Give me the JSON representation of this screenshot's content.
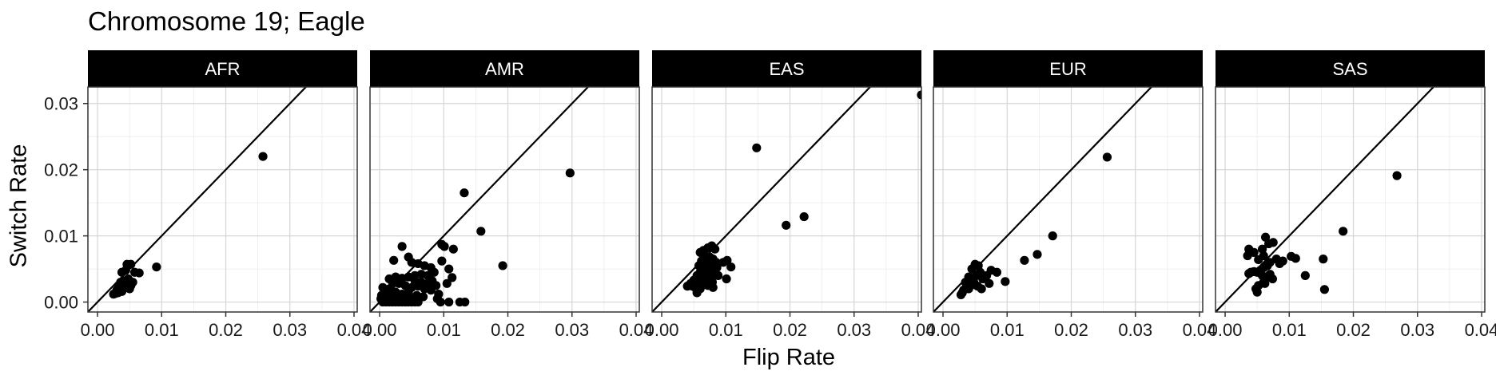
{
  "title": "Chromosome 19; Eagle",
  "chart_data": {
    "type": "scatter",
    "title": "Chromosome 19; Eagle",
    "xlabel": "Flip Rate",
    "ylabel": "Switch Rate",
    "xlim": [
      -0.0015,
      0.0405
    ],
    "ylim": [
      -0.0015,
      0.0325
    ],
    "xticks": [
      "0.00",
      "0.01",
      "0.02",
      "0.03",
      "0.04"
    ],
    "yticks": [
      "0.00",
      "0.01",
      "0.02",
      "0.03"
    ],
    "xtick_values": [
      0,
      0.01,
      0.02,
      0.03,
      0.04
    ],
    "ytick_values": [
      0,
      0.01,
      0.02,
      0.03
    ],
    "reference_line": "y = x",
    "grid": true,
    "legend": "none",
    "panels": [
      {
        "name": "AFR",
        "points": [
          [
            0.0258,
            0.022
          ],
          [
            0.0092,
            0.0053
          ],
          [
            0.0065,
            0.0044
          ],
          [
            0.0058,
            0.0045
          ],
          [
            0.0052,
            0.0057
          ],
          [
            0.0046,
            0.0057
          ],
          [
            0.0044,
            0.0048
          ],
          [
            0.0038,
            0.0045
          ],
          [
            0.0048,
            0.0035
          ],
          [
            0.0042,
            0.0032
          ],
          [
            0.0036,
            0.003
          ],
          [
            0.0052,
            0.0025
          ],
          [
            0.005,
            0.002
          ],
          [
            0.0045,
            0.0022
          ],
          [
            0.004,
            0.002
          ],
          [
            0.0035,
            0.0022
          ],
          [
            0.003,
            0.0018
          ],
          [
            0.0032,
            0.0014
          ],
          [
            0.0028,
            0.0013
          ],
          [
            0.0025,
            0.0012
          ],
          [
            0.0038,
            0.0016
          ],
          [
            0.0043,
            0.0027
          ],
          [
            0.0055,
            0.003
          ],
          [
            0.0033,
            0.0025
          ]
        ]
      },
      {
        "name": "AMR",
        "points": [
          [
            0.0297,
            0.0195
          ],
          [
            0.0132,
            0.0165
          ],
          [
            0.0158,
            0.0107
          ],
          [
            0.0192,
            0.0055
          ],
          [
            0.0097,
            0.0087
          ],
          [
            0.0101,
            0.0084
          ],
          [
            0.0115,
            0.008
          ],
          [
            0.0097,
            0.0062
          ],
          [
            0.0108,
            0.005
          ],
          [
            0.0113,
            0.0037
          ],
          [
            0.0105,
            0.0028
          ],
          [
            0.0092,
            0.0012
          ],
          [
            0.009,
            0.0005
          ],
          [
            0.0095,
            0.0
          ],
          [
            0.0108,
            0.0
          ],
          [
            0.0125,
            0.0
          ],
          [
            0.0133,
            0.0
          ],
          [
            0.0035,
            0.0084
          ],
          [
            0.0022,
            0.0063
          ],
          [
            0.0045,
            0.0068
          ],
          [
            0.005,
            0.006
          ],
          [
            0.006,
            0.0058
          ],
          [
            0.007,
            0.0055
          ],
          [
            0.008,
            0.0052
          ],
          [
            0.0085,
            0.0045
          ],
          [
            0.0075,
            0.004
          ],
          [
            0.0065,
            0.0042
          ],
          [
            0.0055,
            0.004
          ],
          [
            0.0045,
            0.0038
          ],
          [
            0.0035,
            0.0036
          ],
          [
            0.0025,
            0.0038
          ],
          [
            0.0015,
            0.0035
          ],
          [
            0.002,
            0.003
          ],
          [
            0.003,
            0.0028
          ],
          [
            0.004,
            0.0025
          ],
          [
            0.005,
            0.0022
          ],
          [
            0.006,
            0.0024
          ],
          [
            0.007,
            0.002
          ],
          [
            0.008,
            0.0018
          ],
          [
            0.0065,
            0.003
          ],
          [
            0.0055,
            0.0032
          ],
          [
            0.0045,
            0.0015
          ],
          [
            0.0035,
            0.0012
          ],
          [
            0.0025,
            0.0015
          ],
          [
            0.0015,
            0.002
          ],
          [
            0.0005,
            0.0022
          ],
          [
            0.0008,
            0.0015
          ],
          [
            0.0012,
            0.001
          ],
          [
            0.0018,
            0.0008
          ],
          [
            0.0028,
            0.0006
          ],
          [
            0.0038,
            0.0008
          ],
          [
            0.0048,
            0.0006
          ],
          [
            0.0058,
            0.001
          ],
          [
            0.0068,
            0.0008
          ],
          [
            0.0002,
            0.0005
          ],
          [
            0.0005,
            0.0
          ],
          [
            0.001,
            0.0
          ],
          [
            0.0015,
            0.0
          ],
          [
            0.002,
            0.0
          ],
          [
            0.0025,
            0.0
          ],
          [
            0.003,
            0.0
          ],
          [
            0.0035,
            0.0
          ],
          [
            0.004,
            0.0
          ],
          [
            0.0045,
            0.0
          ],
          [
            0.005,
            0.0
          ],
          [
            0.0055,
            0.0
          ],
          [
            0.006,
            0.0
          ],
          [
            0.0003,
            0.001
          ],
          [
            0.0008,
            0.0005
          ],
          [
            0.0075,
            0.0028
          ],
          [
            0.0082,
            0.0032
          ],
          [
            0.0088,
            0.0025
          ]
        ]
      },
      {
        "name": "EAS",
        "points": [
          [
            0.0405,
            0.0313
          ],
          [
            0.0148,
            0.0233
          ],
          [
            0.0222,
            0.0129
          ],
          [
            0.0194,
            0.0116
          ],
          [
            0.0102,
            0.0063
          ],
          [
            0.0108,
            0.0053
          ],
          [
            0.0101,
            0.0035
          ],
          [
            0.0096,
            0.006
          ],
          [
            0.0083,
            0.008
          ],
          [
            0.0078,
            0.0085
          ],
          [
            0.0072,
            0.0082
          ],
          [
            0.0065,
            0.0078
          ],
          [
            0.006,
            0.0075
          ],
          [
            0.0068,
            0.007
          ],
          [
            0.0075,
            0.0068
          ],
          [
            0.008,
            0.0065
          ],
          [
            0.0085,
            0.006
          ],
          [
            0.0078,
            0.0055
          ],
          [
            0.007,
            0.0058
          ],
          [
            0.0062,
            0.0062
          ],
          [
            0.0058,
            0.0055
          ],
          [
            0.0066,
            0.005
          ],
          [
            0.0074,
            0.0048
          ],
          [
            0.0082,
            0.0045
          ],
          [
            0.0088,
            0.004
          ],
          [
            0.0076,
            0.0038
          ],
          [
            0.0068,
            0.0042
          ],
          [
            0.006,
            0.0045
          ],
          [
            0.0055,
            0.004
          ],
          [
            0.0063,
            0.0035
          ],
          [
            0.0071,
            0.0032
          ],
          [
            0.0079,
            0.003
          ],
          [
            0.0066,
            0.0028
          ],
          [
            0.0058,
            0.003
          ],
          [
            0.005,
            0.0033
          ],
          [
            0.0045,
            0.0028
          ],
          [
            0.0052,
            0.0022
          ],
          [
            0.006,
            0.002
          ],
          [
            0.0048,
            0.0024
          ],
          [
            0.004,
            0.0024
          ],
          [
            0.0072,
            0.0025
          ],
          [
            0.008,
            0.0022
          ],
          [
            0.0055,
            0.0014
          ],
          [
            0.0064,
            0.0048
          ],
          [
            0.007,
            0.0052
          ],
          [
            0.0086,
            0.0052
          ]
        ]
      },
      {
        "name": "EUR",
        "points": [
          [
            0.0256,
            0.0219
          ],
          [
            0.0171,
            0.01
          ],
          [
            0.0147,
            0.0072
          ],
          [
            0.0127,
            0.0063
          ],
          [
            0.0097,
            0.0031
          ],
          [
            0.0084,
            0.0045
          ],
          [
            0.0075,
            0.0048
          ],
          [
            0.0068,
            0.004
          ],
          [
            0.0062,
            0.0035
          ],
          [
            0.0072,
            0.0028
          ],
          [
            0.0055,
            0.0055
          ],
          [
            0.005,
            0.0057
          ],
          [
            0.0045,
            0.005
          ],
          [
            0.0058,
            0.0045
          ],
          [
            0.0052,
            0.004
          ],
          [
            0.0046,
            0.0036
          ],
          [
            0.004,
            0.0038
          ],
          [
            0.0035,
            0.003
          ],
          [
            0.0045,
            0.0026
          ],
          [
            0.0054,
            0.0024
          ],
          [
            0.006,
            0.002
          ],
          [
            0.004,
            0.002
          ],
          [
            0.0032,
            0.0018
          ],
          [
            0.003,
            0.0014
          ],
          [
            0.0028,
            0.0011
          ],
          [
            0.0036,
            0.0022
          ],
          [
            0.0048,
            0.003
          ],
          [
            0.0042,
            0.0033
          ]
        ]
      },
      {
        "name": "SAS",
        "points": [
          [
            0.0268,
            0.0191
          ],
          [
            0.0184,
            0.0107
          ],
          [
            0.0153,
            0.0065
          ],
          [
            0.0155,
            0.0019
          ],
          [
            0.0125,
            0.004
          ],
          [
            0.011,
            0.0066
          ],
          [
            0.0103,
            0.0069
          ],
          [
            0.009,
            0.0062
          ],
          [
            0.0085,
            0.0058
          ],
          [
            0.008,
            0.0065
          ],
          [
            0.0075,
            0.009
          ],
          [
            0.0068,
            0.0088
          ],
          [
            0.0063,
            0.0098
          ],
          [
            0.0058,
            0.008
          ],
          [
            0.006,
            0.007
          ],
          [
            0.007,
            0.006
          ],
          [
            0.0066,
            0.0055
          ],
          [
            0.006,
            0.0052
          ],
          [
            0.0055,
            0.0048
          ],
          [
            0.005,
            0.0045
          ],
          [
            0.0045,
            0.0046
          ],
          [
            0.004,
            0.0045
          ],
          [
            0.0037,
            0.0043
          ],
          [
            0.0035,
            0.007
          ],
          [
            0.0037,
            0.008
          ],
          [
            0.0045,
            0.0075
          ],
          [
            0.0052,
            0.0064
          ],
          [
            0.0058,
            0.004
          ],
          [
            0.0066,
            0.0038
          ],
          [
            0.0074,
            0.0035
          ],
          [
            0.006,
            0.003
          ],
          [
            0.0052,
            0.0025
          ],
          [
            0.0048,
            0.002
          ],
          [
            0.005,
            0.0015
          ],
          [
            0.0062,
            0.0028
          ],
          [
            0.007,
            0.0042
          ]
        ]
      }
    ]
  }
}
